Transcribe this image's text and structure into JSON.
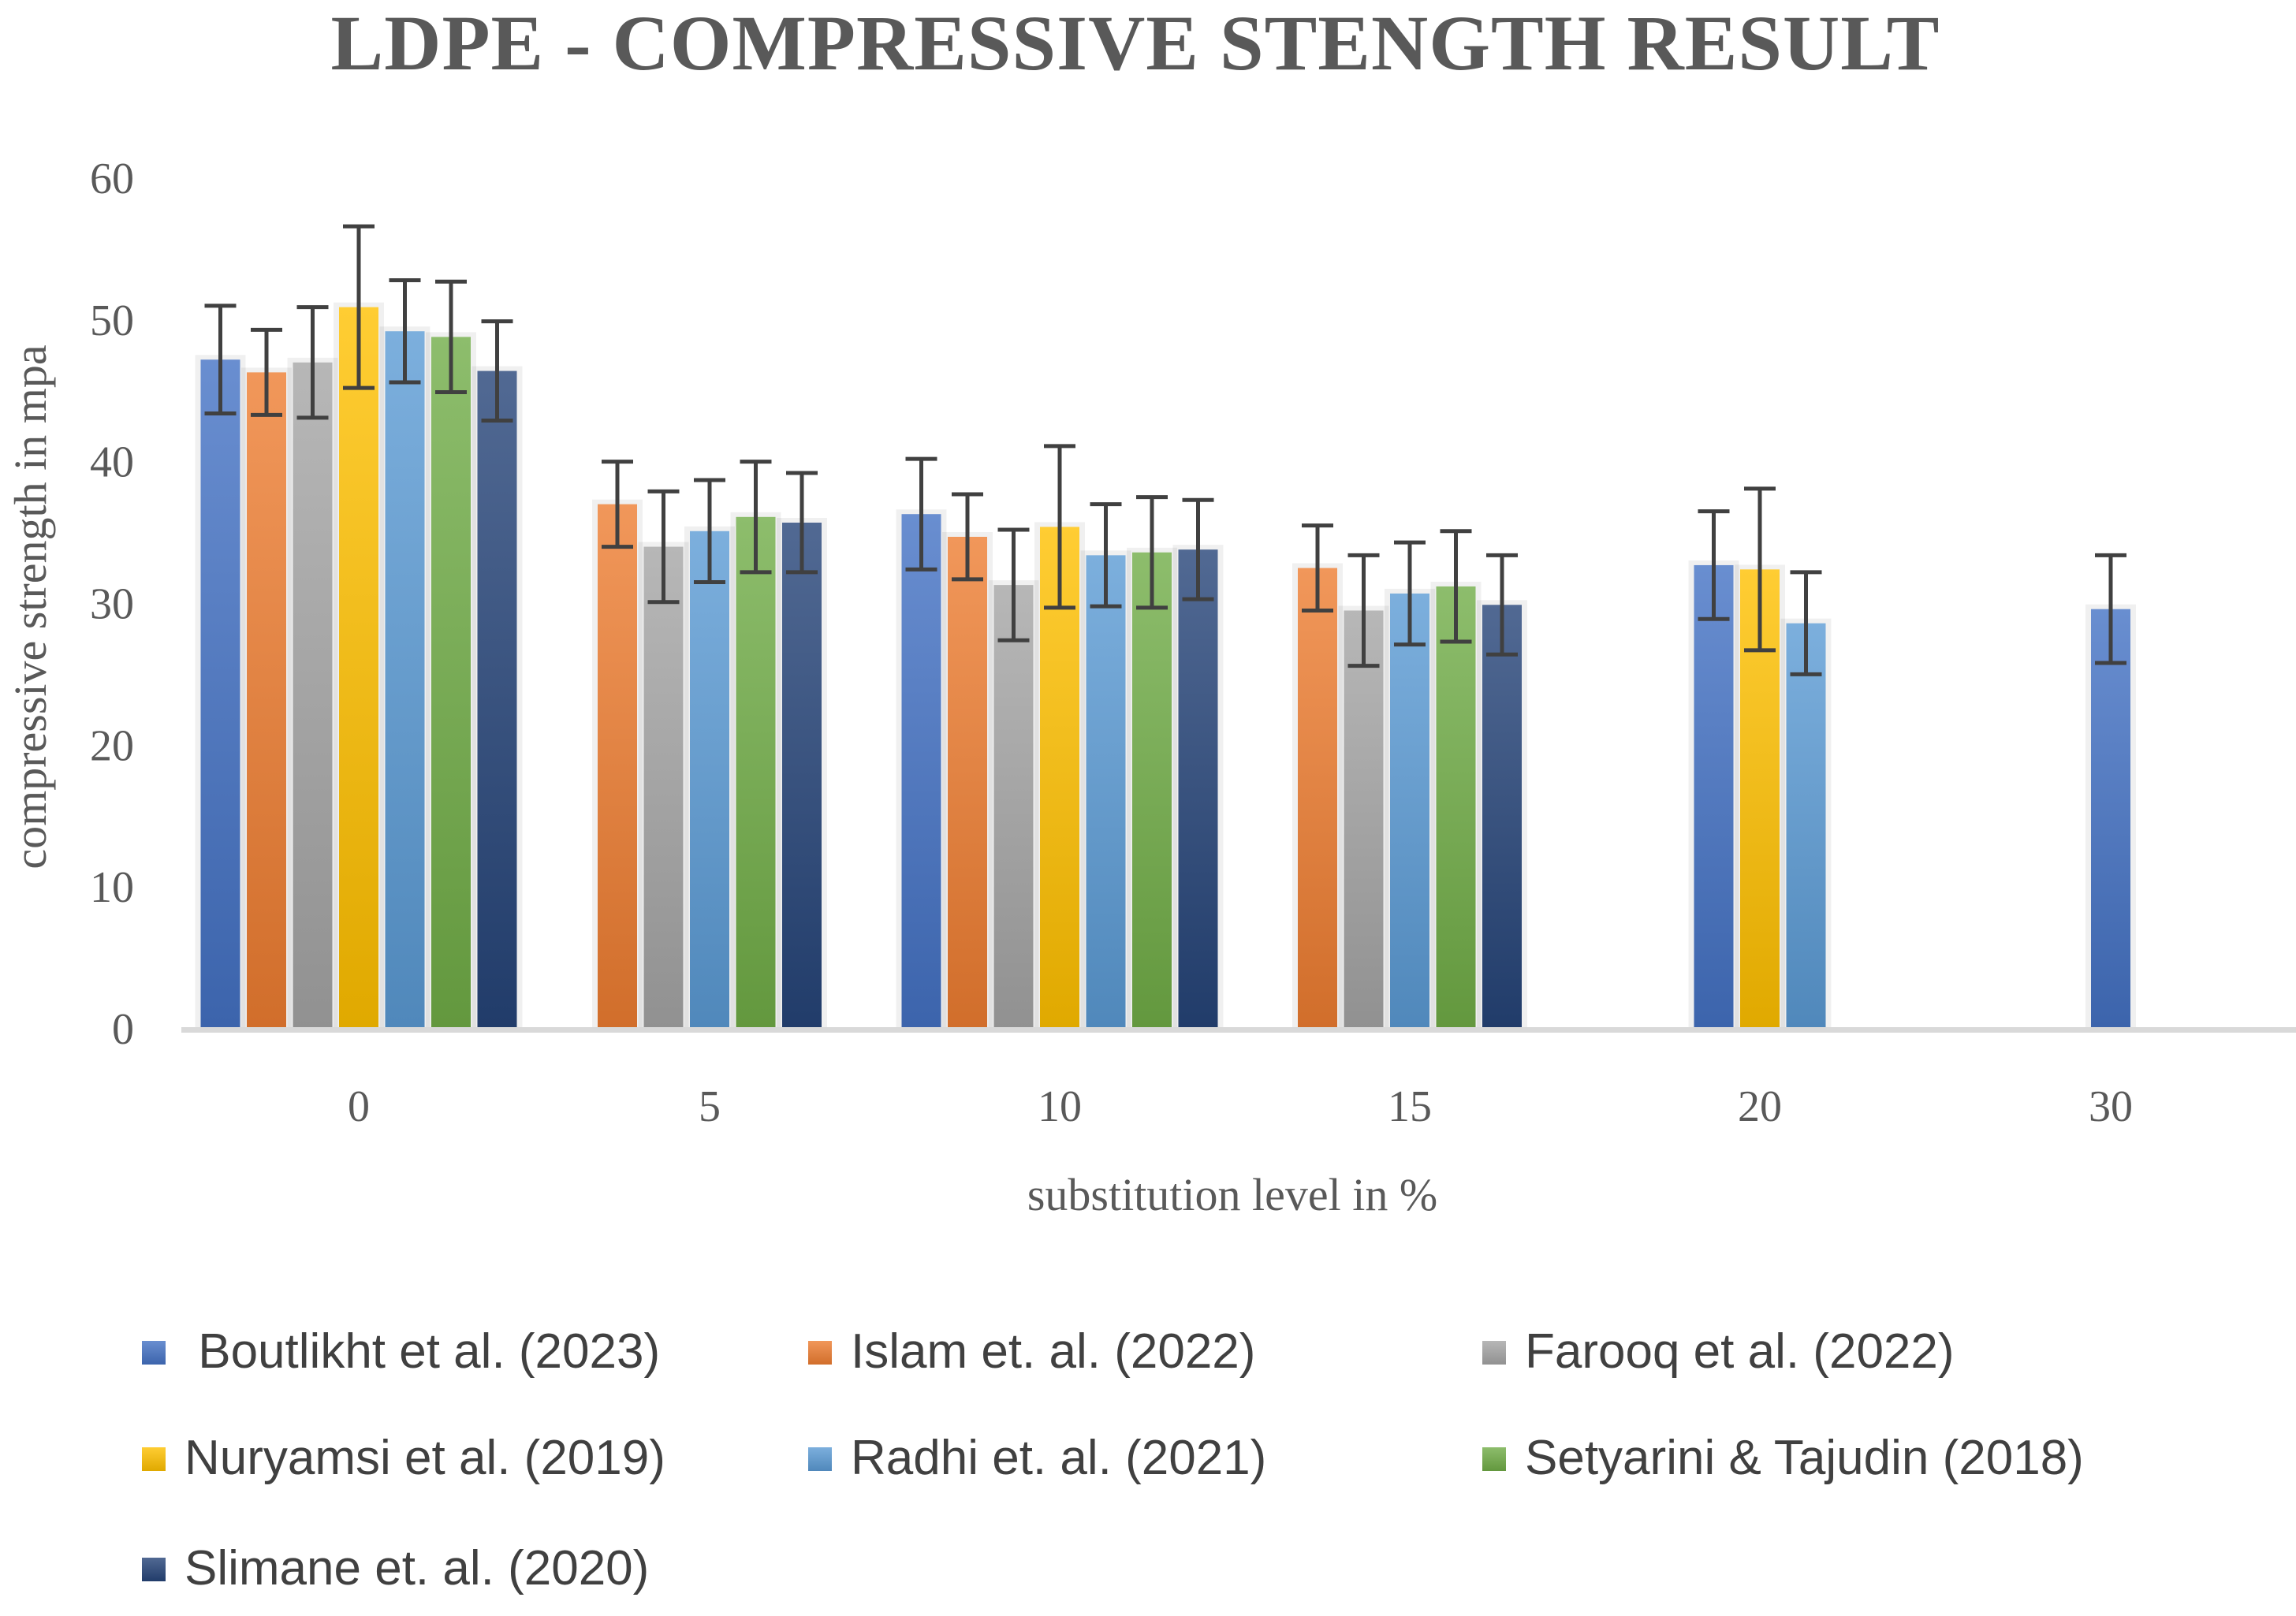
{
  "chart_data": {
    "type": "bar",
    "title": "LDPE - COMPRESSIVE STENGTH RESULT",
    "xlabel": "substitution level in %",
    "ylabel": "compressive strength in mpa",
    "ylim": [
      0,
      60
    ],
    "yticks": [
      "0",
      "10",
      "20",
      "30",
      "40",
      "50",
      "60"
    ],
    "categories": [
      "0",
      "5",
      "10",
      "15",
      "20",
      "30"
    ],
    "grid": false,
    "legend_position": "bottom",
    "error_bars": true,
    "series": [
      {
        "name": " Boutlikht et al. (2023)",
        "color": "#4472C4",
        "values": [
          47.2,
          null,
          36.3,
          null,
          32.7,
          29.6
        ],
        "errors": [
          3.8,
          null,
          3.9,
          null,
          3.8,
          3.8
        ]
      },
      {
        "name": "Islam et. al. (2022)",
        "color": "#ED7D31",
        "values": [
          46.3,
          37.0,
          34.7,
          32.5,
          null,
          null
        ],
        "errors": [
          3.0,
          3.0,
          3.0,
          3.0,
          null,
          null
        ]
      },
      {
        "name": "Farooq et al. (2022)",
        "color": "#A5A5A5",
        "values": [
          47.0,
          34.0,
          31.3,
          29.5,
          null,
          null
        ],
        "errors": [
          3.9,
          3.9,
          3.9,
          3.9,
          null,
          null
        ]
      },
      {
        "name": "Nuryamsi et al. (2019)",
        "color": "#FFC000",
        "values": [
          50.9,
          null,
          35.4,
          null,
          32.4,
          null
        ],
        "errors": [
          5.7,
          null,
          5.7,
          null,
          5.7,
          null
        ]
      },
      {
        "name": "Radhi et. al. (2021)",
        "color": "#5B9BD5",
        "values": [
          49.2,
          35.1,
          33.4,
          30.7,
          28.6,
          null
        ],
        "errors": [
          3.6,
          3.6,
          3.6,
          3.6,
          3.6,
          null
        ]
      },
      {
        "name": "Setyarini & Tajudin (2018)",
        "color": "#70AD47",
        "values": [
          48.8,
          36.1,
          33.6,
          31.2,
          null,
          null
        ],
        "errors": [
          3.9,
          3.9,
          3.9,
          3.9,
          null,
          null
        ]
      },
      {
        "name": "Slimane et. al. (2020)",
        "color": "#264478",
        "values": [
          46.4,
          35.7,
          33.8,
          29.9,
          null,
          null
        ],
        "errors": [
          3.5,
          3.5,
          3.5,
          3.5,
          null,
          null
        ]
      }
    ]
  }
}
